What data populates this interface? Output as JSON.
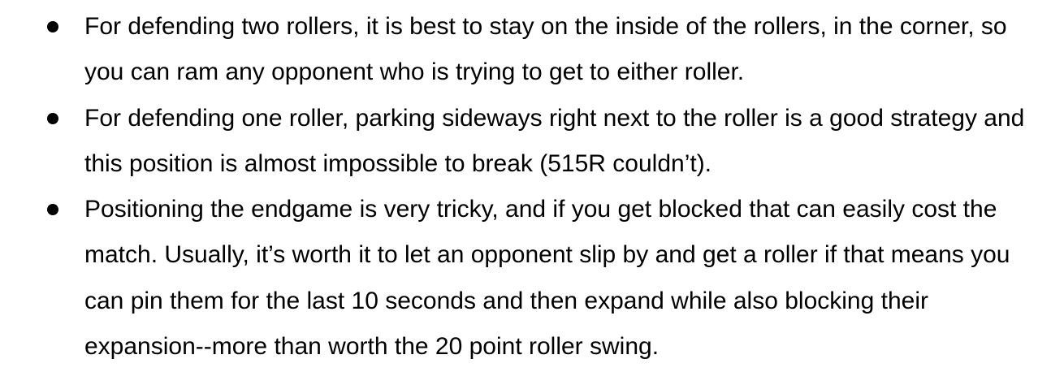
{
  "bullets": [
    {
      "text": "For defending two rollers, it is best to stay on the inside of the rollers, in the corner, so you can ram any opponent who is trying to get to either roller."
    },
    {
      "text": "For defending one roller, parking sideways right next to the roller is a good strategy and this position is almost impossible to break (515R couldn’t)."
    },
    {
      "text": "Positioning the endgame is very tricky, and if you get blocked that can easily cost the match. Usually, it’s worth it to let an opponent slip by and get a roller if that means you can pin them for the last 10 seconds and then expand while also blocking their expansion--more than worth the 20 point roller swing."
    }
  ]
}
